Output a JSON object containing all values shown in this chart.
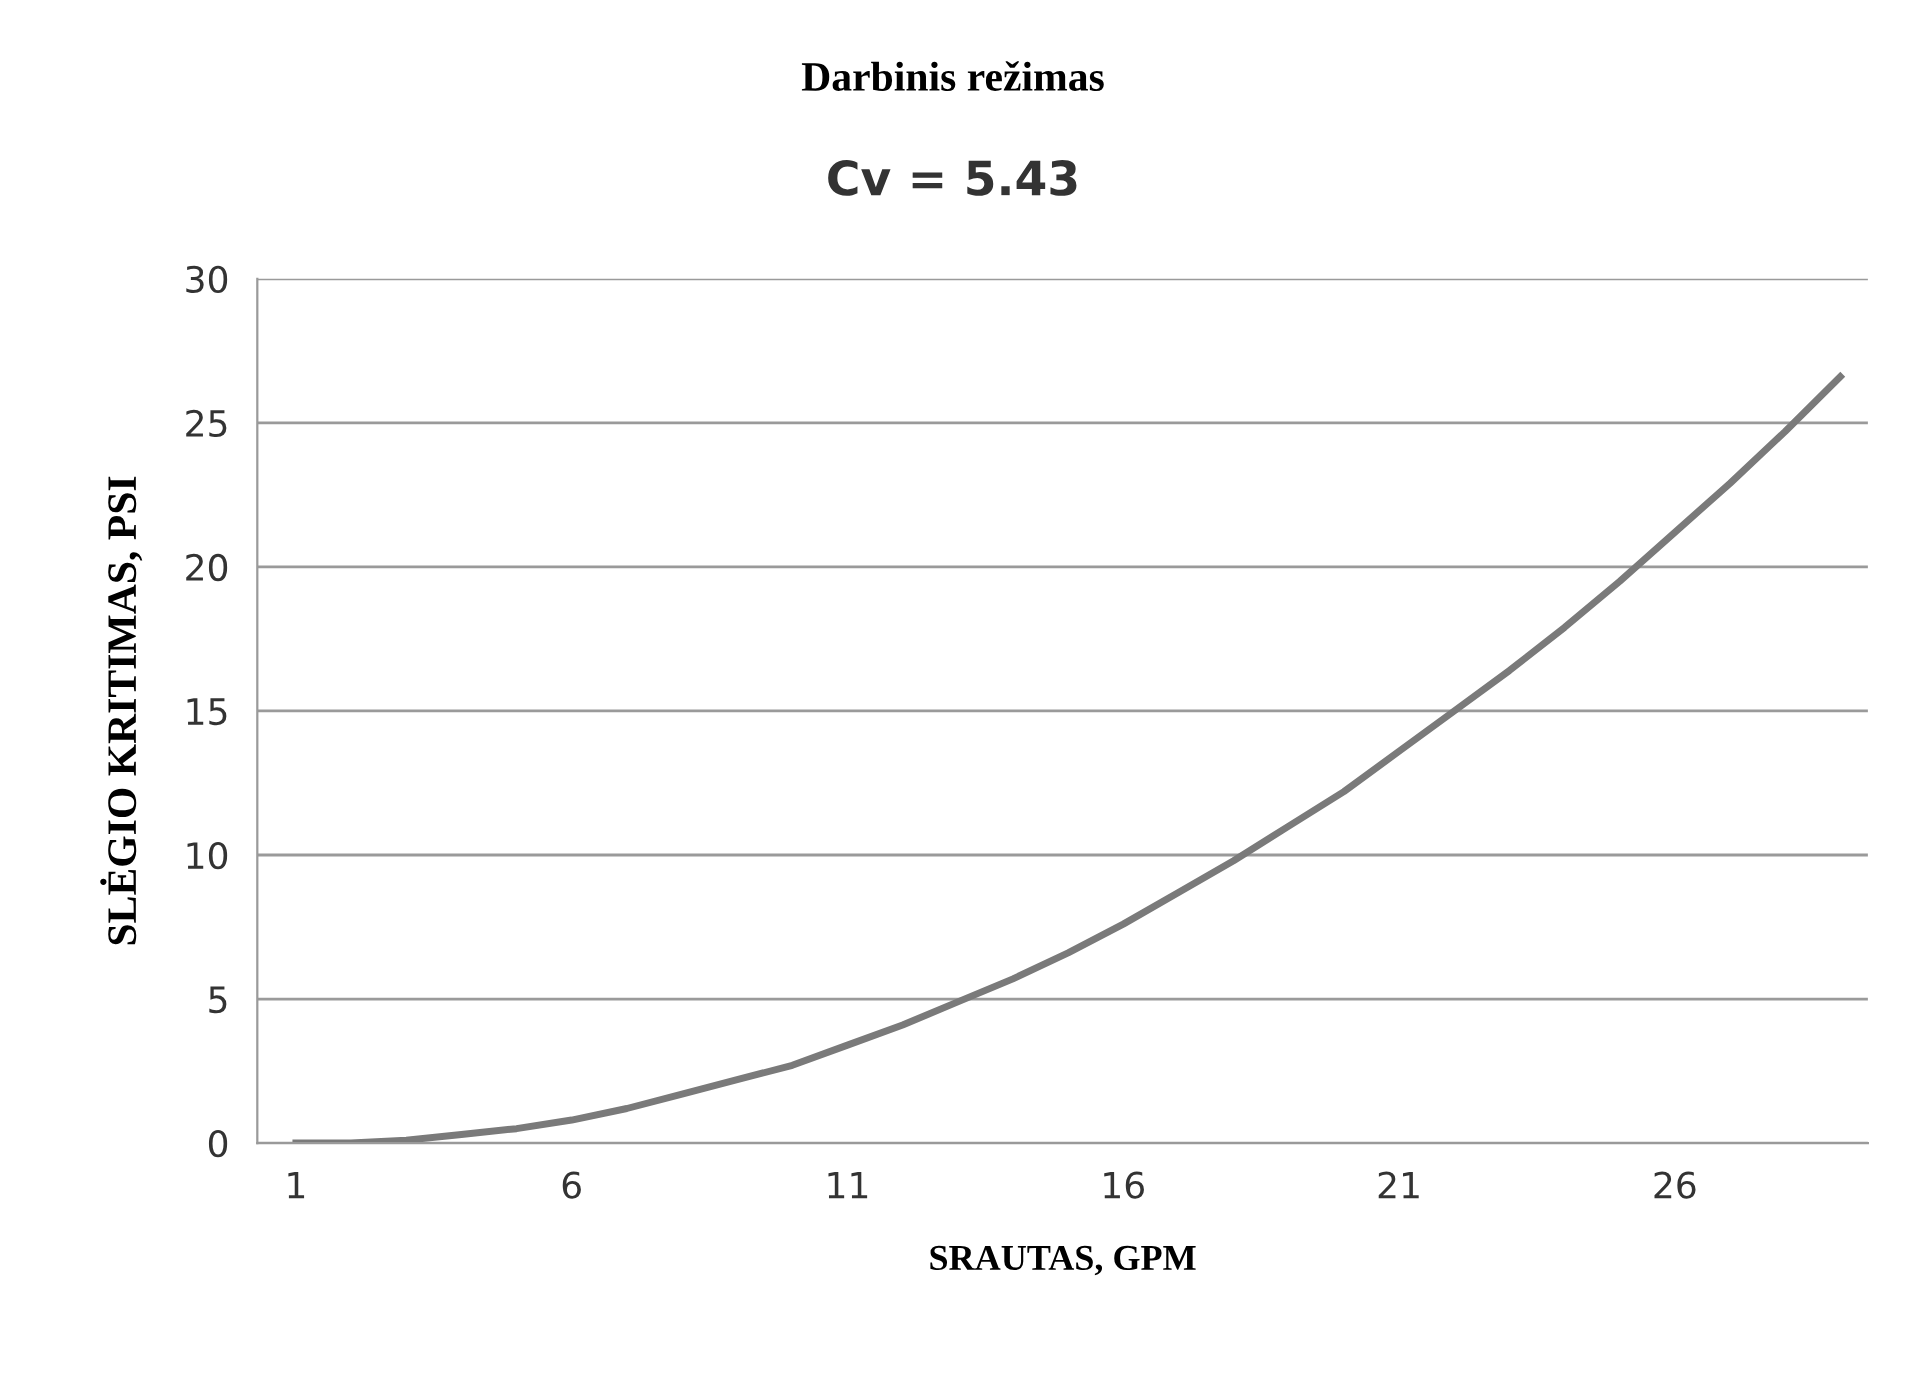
{
  "chart_data": {
    "type": "line",
    "title": "Darbinis režimas",
    "subtitle": "Cv = 5.43",
    "xlabel": "SRAUTAS, GPM",
    "ylabel": "SLĖGIO KRITIMAS, PSI",
    "x": [
      1,
      2,
      3,
      4,
      5,
      6,
      7,
      8,
      9,
      10,
      11,
      12,
      13,
      14,
      15,
      16,
      17,
      18,
      19,
      20,
      21,
      22,
      23,
      24,
      25,
      26,
      27,
      28,
      29
    ],
    "series": [
      {
        "color": "#7a7a7a",
        "values": [
          0,
          0.0,
          0.1,
          0.3,
          0.5,
          0.8,
          1.2,
          1.7,
          2.2,
          2.7,
          3.4,
          4.1,
          4.9,
          5.7,
          6.6,
          7.6,
          8.7,
          9.8,
          11.0,
          12.2,
          13.6,
          15.0,
          16.4,
          17.9,
          19.5,
          21.2,
          22.9,
          24.7,
          26.6
        ]
      }
    ],
    "xlim": [
      0.3,
      29.5
    ],
    "xticks": [
      1,
      6,
      11,
      16,
      21,
      26
    ],
    "ylim": [
      0,
      30
    ],
    "yticks": [
      0,
      5,
      10,
      15,
      20,
      25,
      30
    ],
    "grid": "y",
    "legend": false,
    "marker": "none",
    "line_style": "solid"
  }
}
